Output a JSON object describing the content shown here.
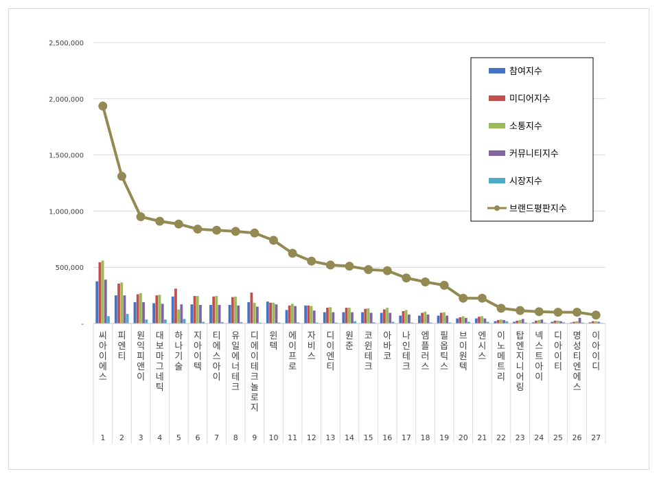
{
  "chart_data": {
    "type": "bar",
    "title": "",
    "xlabel": "",
    "ylabel": "",
    "ylim": [
      0,
      2500000
    ],
    "yticks": [
      0,
      500000,
      1000000,
      1500000,
      2000000,
      2500000
    ],
    "ytick_labels": [
      "-",
      "500,000",
      "1,000,000",
      "1,500,000",
      "2,000,000",
      "2,500,000"
    ],
    "grid": true,
    "legend_position": "top-right",
    "categories": [
      "씨아이에스",
      "피엔티",
      "원익피앤이",
      "대보마그네틱",
      "하나기술",
      "지아이텍",
      "티에스아이",
      "유일에너테크",
      "디에이테크놀로지",
      "윈텍",
      "에이프로",
      "자비스",
      "디이엔티",
      "원준",
      "코윈테크",
      "아바코",
      "나인테크",
      "엠플러스",
      "필옵틱스",
      "브이원텍",
      "엔시스",
      "이노메트리",
      "탑엔지니어링",
      "넥스트아이",
      "디아이티",
      "명성티엔에스",
      "이아이디"
    ],
    "ranks": [
      "1",
      "2",
      "3",
      "4",
      "5",
      "6",
      "7",
      "8",
      "9",
      "10",
      "11",
      "12",
      "13",
      "14",
      "15",
      "16",
      "17",
      "18",
      "19",
      "20",
      "21",
      "22",
      "23",
      "24",
      "25",
      "26",
      "27"
    ],
    "series": [
      {
        "name": "참여지수",
        "color": "#4472c4",
        "kind": "bar",
        "values": [
          375000,
          250000,
          190000,
          180000,
          240000,
          170000,
          165000,
          165000,
          190000,
          195000,
          120000,
          160000,
          100000,
          100000,
          100000,
          95000,
          70000,
          70000,
          70000,
          45000,
          45000,
          20000,
          15000,
          10000,
          15000,
          8000,
          10000
        ]
      },
      {
        "name": "미디어지수",
        "color": "#c0504d",
        "kind": "bar",
        "values": [
          545000,
          355000,
          260000,
          250000,
          310000,
          245000,
          240000,
          235000,
          275000,
          185000,
          160000,
          160000,
          140000,
          140000,
          130000,
          125000,
          110000,
          95000,
          95000,
          55000,
          60000,
          30000,
          25000,
          25000,
          25000,
          15000,
          20000
        ]
      },
      {
        "name": "소통지수",
        "color": "#9bbb59",
        "kind": "bar",
        "values": [
          560000,
          365000,
          270000,
          255000,
          125000,
          245000,
          245000,
          240000,
          185000,
          185000,
          175000,
          155000,
          145000,
          140000,
          135000,
          140000,
          120000,
          105000,
          100000,
          65000,
          65000,
          35000,
          30000,
          30000,
          25000,
          20000,
          20000
        ]
      },
      {
        "name": "커뮤니티지수",
        "color": "#8064a2",
        "kind": "bar",
        "values": [
          390000,
          250000,
          190000,
          175000,
          170000,
          165000,
          165000,
          160000,
          150000,
          170000,
          155000,
          115000,
          100000,
          100000,
          95000,
          95000,
          80000,
          80000,
          70000,
          50000,
          45000,
          30000,
          40000,
          35000,
          20000,
          50000,
          15000
        ]
      },
      {
        "name": "시장지수",
        "color": "#4bacc6",
        "kind": "bar",
        "values": [
          65000,
          85000,
          35000,
          35000,
          40000,
          15000,
          12000,
          12000,
          8000,
          8000,
          10000,
          8000,
          8000,
          20000,
          10000,
          15000,
          8000,
          8000,
          8000,
          15000,
          15000,
          20000,
          8000,
          8000,
          10000,
          8000,
          5000
        ]
      },
      {
        "name": "브랜드평판지수",
        "color": "#938953",
        "kind": "line",
        "values": [
          1935000,
          1310000,
          950000,
          910000,
          885000,
          840000,
          830000,
          820000,
          805000,
          740000,
          625000,
          555000,
          520000,
          510000,
          480000,
          470000,
          405000,
          370000,
          340000,
          225000,
          225000,
          135000,
          115000,
          105000,
          100000,
          100000,
          75000
        ]
      }
    ]
  }
}
